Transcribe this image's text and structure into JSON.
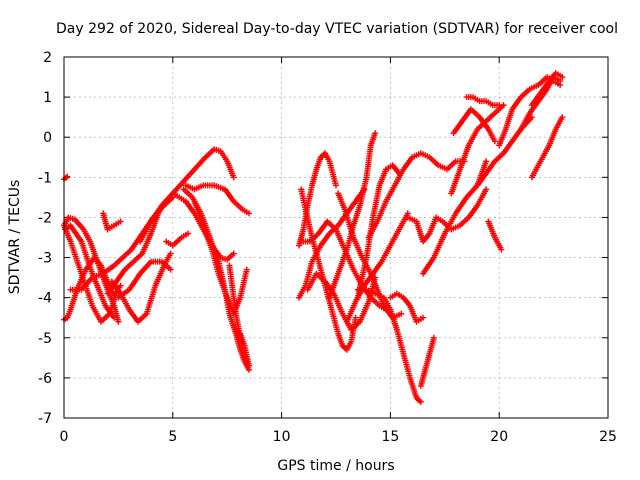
{
  "chart_data": {
    "type": "scatter",
    "title": "Day 292 of 2020, Sidereal Day-to-day VTEC variation (SDTVAR) for receiver cool",
    "xlabel": "GPS time / hours",
    "ylabel": "SDTVAR / TECUs",
    "xlim": [
      0,
      25
    ],
    "ylim": [
      -7,
      2
    ],
    "xticks": [
      "0",
      "5",
      "10",
      "15",
      "20",
      "25"
    ],
    "yticks": [
      "-7",
      "-6",
      "-5",
      "-4",
      "-3",
      "-2",
      "-1",
      "0",
      "1",
      "2"
    ],
    "grid": true,
    "marker": "plus",
    "color": "#ff0000",
    "series": [
      {
        "x": [
          0.0,
          0.15,
          0.3,
          0.6,
          1.0,
          1.4,
          1.7,
          2.0,
          2.3,
          2.6
        ],
        "y": [
          -4.55,
          -4.5,
          -4.3,
          -3.8,
          -3.3,
          -3.0,
          -3.2,
          -3.6,
          -3.95,
          -3.7
        ]
      },
      {
        "x": [
          0.05,
          0.3,
          0.8,
          1.3,
          1.9,
          2.3
        ],
        "y": [
          -2.3,
          -2.2,
          -2.6,
          -3.4,
          -4.2,
          -4.5
        ]
      },
      {
        "x": [
          0.0,
          0.2,
          0.5,
          0.9,
          1.2,
          1.6,
          2.0,
          2.3,
          2.5
        ],
        "y": [
          -2.2,
          -2.0,
          -2.05,
          -2.3,
          -2.6,
          -3.2,
          -3.8,
          -4.2,
          -4.6
        ]
      },
      {
        "x": [
          0.0,
          0.3,
          0.8,
          1.3,
          1.7,
          2.1,
          2.4
        ],
        "y": [
          -2.2,
          -2.6,
          -3.4,
          -4.2,
          -4.6,
          -4.4,
          -3.9
        ]
      },
      {
        "x": [
          0.0,
          0.15
        ],
        "y": [
          -1.05,
          -0.98
        ]
      },
      {
        "x": [
          0.3,
          0.8,
          1.3,
          1.8,
          2.3,
          2.7,
          3.1,
          3.6,
          4.1,
          4.6,
          5.0
        ],
        "y": [
          -3.8,
          -3.8,
          -3.5,
          -3.4,
          -3.2,
          -3.0,
          -2.8,
          -2.4,
          -2.0,
          -1.7,
          -1.5
        ]
      },
      {
        "x": [
          1.8,
          2.0,
          2.3,
          2.6
        ],
        "y": [
          -1.9,
          -2.3,
          -2.2,
          -2.1
        ]
      },
      {
        "x": [
          2.0,
          2.4,
          2.8,
          3.2,
          3.6,
          4.0,
          4.4
        ],
        "y": [
          -3.9,
          -3.6,
          -3.3,
          -3.1,
          -2.9,
          -2.4,
          -1.8
        ]
      },
      {
        "x": [
          2.2,
          2.6,
          3.0,
          3.4,
          3.8,
          4.2,
          4.6,
          4.9
        ],
        "y": [
          -3.6,
          -3.9,
          -4.3,
          -4.6,
          -4.4,
          -3.7,
          -3.2,
          -2.9
        ]
      },
      {
        "x": [
          2.5,
          3.0,
          3.5,
          4.0,
          4.5,
          4.9
        ],
        "y": [
          -4.0,
          -3.8,
          -3.4,
          -3.1,
          -3.1,
          -3.3
        ]
      },
      {
        "x": [
          3.5,
          4.0,
          4.5,
          5.0,
          5.5,
          6.0,
          6.5,
          6.9,
          7.2,
          7.5,
          7.8
        ],
        "y": [
          -2.6,
          -2.1,
          -1.7,
          -1.4,
          -1.1,
          -0.8,
          -0.5,
          -0.3,
          -0.35,
          -0.6,
          -1.0
        ]
      },
      {
        "x": [
          5.0,
          5.3,
          5.6,
          6.0,
          6.4,
          6.8,
          7.2,
          7.5,
          7.8
        ],
        "y": [
          -1.4,
          -1.5,
          -1.6,
          -1.9,
          -2.3,
          -2.7,
          -3.0,
          -3.05,
          -2.9
        ]
      },
      {
        "x": [
          4.7,
          5.0,
          5.4,
          5.7
        ],
        "y": [
          -2.6,
          -2.7,
          -2.5,
          -2.4
        ]
      },
      {
        "x": [
          5.5,
          5.9,
          6.3,
          6.7,
          7.1,
          7.4,
          7.6,
          7.9,
          8.1,
          8.3,
          8.5
        ],
        "y": [
          -1.3,
          -1.5,
          -1.9,
          -2.5,
          -3.1,
          -3.8,
          -4.4,
          -4.9,
          -5.3,
          -5.6,
          -5.8
        ]
      },
      {
        "x": [
          6.0,
          6.4,
          6.8,
          7.1,
          7.5,
          7.8,
          8.1,
          8.4
        ],
        "y": [
          -1.6,
          -2.2,
          -2.8,
          -3.4,
          -4.0,
          -4.4,
          -4.0,
          -3.3
        ]
      },
      {
        "x": [
          5.6,
          6.0,
          6.4,
          6.9,
          7.4,
          7.8,
          8.2,
          8.5
        ],
        "y": [
          -1.2,
          -1.3,
          -1.2,
          -1.2,
          -1.3,
          -1.6,
          -1.8,
          -1.9
        ]
      },
      {
        "x": [
          7.6,
          7.9,
          8.2,
          8.5
        ],
        "y": [
          -3.2,
          -4.4,
          -5.3,
          -5.7
        ]
      },
      {
        "x": [
          8.1,
          8.3,
          8.5
        ],
        "y": [
          -4.9,
          -5.2,
          -5.7
        ]
      },
      {
        "x": [
          10.8,
          11.0,
          11.2,
          11.4,
          11.6,
          11.8,
          12.0,
          12.2,
          12.5
        ],
        "y": [
          -2.7,
          -2.3,
          -1.7,
          -1.2,
          -0.8,
          -0.5,
          -0.4,
          -0.6,
          -1.2
        ]
      },
      {
        "x": [
          10.9,
          11.1,
          11.4,
          11.7,
          12.0,
          12.3,
          12.6,
          12.8,
          13.0,
          13.2,
          13.4
        ],
        "y": [
          -1.3,
          -1.8,
          -2.5,
          -3.1,
          -3.7,
          -4.3,
          -4.9,
          -5.2,
          -5.3,
          -5.1,
          -4.5
        ]
      },
      {
        "x": [
          10.8,
          11.1,
          11.4,
          11.8,
          12.2,
          12.6,
          13.0,
          13.4,
          13.8
        ],
        "y": [
          -4.0,
          -3.7,
          -3.1,
          -2.7,
          -2.4,
          -2.2,
          -1.9,
          -1.6,
          -1.3
        ]
      },
      {
        "x": [
          10.9,
          11.3,
          11.7,
          12.1,
          12.5,
          12.9,
          13.3,
          13.7,
          14.1,
          14.5,
          14.8
        ],
        "y": [
          -2.6,
          -2.6,
          -2.4,
          -2.1,
          -2.3,
          -2.8,
          -3.3,
          -3.7,
          -4.0,
          -4.2,
          -4.3
        ]
      },
      {
        "x": [
          11.2,
          11.6,
          12.0,
          12.4,
          12.8,
          13.2,
          13.6,
          14.0,
          14.3
        ],
        "y": [
          -3.8,
          -3.4,
          -3.6,
          -3.9,
          -4.4,
          -4.8,
          -4.6,
          -4.1,
          -3.5
        ]
      },
      {
        "x": [
          12.2,
          12.6,
          13.0,
          13.3,
          13.6,
          13.9,
          14.1,
          14.3
        ],
        "y": [
          -4.0,
          -3.4,
          -2.8,
          -2.2,
          -1.7,
          -1.0,
          -0.2,
          0.1
        ]
      },
      {
        "x": [
          12.6,
          12.9,
          13.3,
          13.7,
          14.1,
          14.4,
          14.7,
          15.1,
          15.5
        ],
        "y": [
          -1.4,
          -1.8,
          -2.5,
          -3.0,
          -3.4,
          -3.8,
          -4.2,
          -4.5,
          -4.4
        ]
      },
      {
        "x": [
          13.0,
          13.4,
          13.8,
          14.2,
          14.6,
          15.0,
          15.4,
          15.8
        ],
        "y": [
          -4.6,
          -4.1,
          -3.7,
          -3.4,
          -3.1,
          -2.7,
          -2.3,
          -1.9
        ]
      },
      {
        "x": [
          13.5,
          13.9,
          14.2,
          14.5,
          14.8,
          15.1,
          15.4
        ],
        "y": [
          -4.0,
          -3.0,
          -2.0,
          -1.2,
          -0.8,
          -0.7,
          -0.9
        ]
      },
      {
        "x": [
          13.5,
          13.9,
          14.3,
          14.7,
          15.0,
          15.3,
          15.6,
          15.9,
          16.2,
          16.4
        ],
        "y": [
          -3.8,
          -3.8,
          -3.9,
          -4.0,
          -4.3,
          -4.8,
          -5.4,
          -6.0,
          -6.5,
          -6.6
        ]
      },
      {
        "x": [
          14.0,
          14.4,
          14.8,
          15.2,
          15.6,
          16.0,
          16.4,
          16.8,
          17.2,
          17.6,
          18.0,
          18.4
        ],
        "y": [
          -2.5,
          -2.1,
          -1.6,
          -1.2,
          -0.8,
          -0.5,
          -0.4,
          -0.5,
          -0.7,
          -0.8,
          -0.6,
          -0.6
        ]
      },
      {
        "x": [
          15.0,
          15.3,
          15.6,
          15.9,
          16.2,
          16.5
        ],
        "y": [
          -4.0,
          -3.9,
          -4.0,
          -4.2,
          -4.6,
          -4.5
        ]
      },
      {
        "x": [
          16.4,
          16.6,
          16.8,
          17.0
        ],
        "y": [
          -6.2,
          -5.8,
          -5.4,
          -5.0
        ]
      },
      {
        "x": [
          15.8,
          16.2,
          16.5,
          16.8,
          17.1,
          17.4,
          17.8,
          18.2,
          18.6,
          19.0,
          19.4
        ],
        "y": [
          -2.0,
          -2.1,
          -2.6,
          -2.4,
          -2.0,
          -2.1,
          -2.3,
          -2.2,
          -2.0,
          -1.7,
          -1.3
        ]
      },
      {
        "x": [
          16.5,
          17.0,
          17.5,
          18.0,
          18.5,
          19.0,
          19.4
        ],
        "y": [
          -3.4,
          -3.0,
          -2.4,
          -1.9,
          -1.5,
          -1.2,
          -0.6
        ]
      },
      {
        "x": [
          17.8,
          18.2,
          18.6,
          19.0,
          19.4,
          19.8,
          20.2
        ],
        "y": [
          -1.4,
          -0.8,
          -0.2,
          0.2,
          0.4,
          0.6,
          0.8
        ]
      },
      {
        "x": [
          17.9,
          18.3,
          18.7,
          19.1,
          19.5,
          19.8
        ],
        "y": [
          0.1,
          0.4,
          0.7,
          0.5,
          0.2,
          -0.1
        ]
      },
      {
        "x": [
          19.0,
          19.4,
          19.8,
          20.2,
          20.6,
          21.0,
          21.5
        ],
        "y": [
          -1.2,
          -0.9,
          -0.6,
          -0.4,
          -0.1,
          0.2,
          0.5
        ]
      },
      {
        "x": [
          18.5,
          18.8,
          19.1,
          19.4,
          19.7,
          20.0
        ],
        "y": [
          1.0,
          1.0,
          0.9,
          0.9,
          0.8,
          0.8
        ]
      },
      {
        "x": [
          19.5,
          19.8,
          20.1
        ],
        "y": [
          -2.1,
          -2.5,
          -2.8
        ]
      },
      {
        "x": [
          20.0,
          20.3,
          20.6,
          21.0,
          21.4,
          21.8,
          22.2,
          22.5,
          22.8
        ],
        "y": [
          -0.2,
          0.2,
          0.7,
          1.0,
          1.2,
          1.3,
          1.5,
          1.4,
          1.3
        ]
      },
      {
        "x": [
          21.0,
          21.4,
          21.8,
          22.2,
          22.5,
          22.8
        ],
        "y": [
          0.2,
          0.6,
          0.9,
          1.2,
          1.5,
          1.4
        ]
      },
      {
        "x": [
          21.5,
          21.9,
          22.3,
          22.6,
          22.9
        ],
        "y": [
          -1.0,
          -0.6,
          -0.2,
          0.2,
          0.5
        ]
      },
      {
        "x": [
          21.5,
          21.9,
          22.3,
          22.6,
          22.9
        ],
        "y": [
          0.8,
          1.1,
          1.4,
          1.6,
          1.5
        ]
      }
    ]
  }
}
